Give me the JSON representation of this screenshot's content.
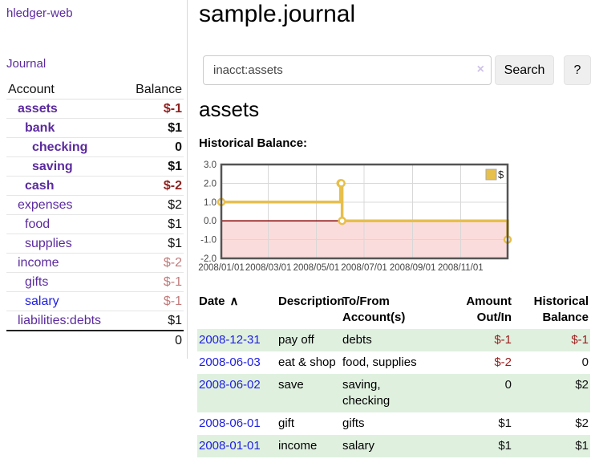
{
  "app": {
    "brand": "hledger-web",
    "nav_journal": "Journal"
  },
  "sidebar": {
    "header": {
      "account": "Account",
      "balance": "Balance"
    },
    "accounts": [
      {
        "label": "assets",
        "indent": 1,
        "bold": true,
        "link": "purple",
        "balance": "$-1",
        "balance_class": "neg"
      },
      {
        "label": "bank",
        "indent": 2,
        "bold": true,
        "link": "purple",
        "balance": "$1",
        "balance_class": "pos"
      },
      {
        "label": "checking",
        "indent": 3,
        "bold": true,
        "link": "purple",
        "balance": "0",
        "balance_class": "pos"
      },
      {
        "label": "saving",
        "indent": 3,
        "bold": true,
        "link": "purple",
        "balance": "$1",
        "balance_class": "pos"
      },
      {
        "label": "cash",
        "indent": 2,
        "bold": true,
        "link": "purple",
        "balance": "$-2",
        "balance_class": "neg"
      },
      {
        "label": "expenses",
        "indent": 1,
        "bold": false,
        "link": "purple",
        "balance": "$2",
        "balance_class": "pos"
      },
      {
        "label": "food",
        "indent": 2,
        "bold": false,
        "link": "purple",
        "balance": "$1",
        "balance_class": "pos"
      },
      {
        "label": "supplies",
        "indent": 2,
        "bold": false,
        "link": "purple",
        "balance": "$1",
        "balance_class": "pos"
      },
      {
        "label": "income",
        "indent": 1,
        "bold": false,
        "link": "purple",
        "balance": "$-2",
        "balance_class": "negmuted"
      },
      {
        "label": "gifts",
        "indent": 2,
        "bold": false,
        "link": "purple",
        "balance": "$-1",
        "balance_class": "negmuted"
      },
      {
        "label": "salary",
        "indent": 2,
        "bold": false,
        "link": "blue",
        "balance": "$-1",
        "balance_class": "negmuted"
      },
      {
        "label": "liabilities:debts",
        "indent": 1,
        "bold": false,
        "link": "purple",
        "balance": "$1",
        "balance_class": "pos"
      }
    ],
    "total": "0"
  },
  "main": {
    "title": "sample.journal",
    "search": {
      "value": "inacct:assets",
      "clear_icon": "×",
      "button": "Search",
      "help_button": "?"
    },
    "account_heading": "assets",
    "chart_label": "Historical Balance:",
    "table": {
      "headers": [
        "Date",
        "Description",
        "To/From\nAccount(s)",
        "Amount\nOut/In",
        "Historical\nBalance"
      ],
      "sort_icon": "∧",
      "rows": [
        {
          "date": "2008-12-31",
          "description": "pay off",
          "accounts": "debts",
          "amount": "$-1",
          "amount_neg": true,
          "balance": "$-1",
          "balance_neg": true
        },
        {
          "date": "2008-06-03",
          "description": "eat & shop",
          "accounts": "food, supplies",
          "amount": "$-2",
          "amount_neg": true,
          "balance": "0",
          "balance_neg": false
        },
        {
          "date": "2008-06-02",
          "description": "save",
          "accounts": "saving, checking",
          "amount": "0",
          "amount_neg": false,
          "balance": "$2",
          "balance_neg": false
        },
        {
          "date": "2008-06-01",
          "description": "gift",
          "accounts": "gifts",
          "amount": "$1",
          "amount_neg": false,
          "balance": "$2",
          "balance_neg": false
        },
        {
          "date": "2008-01-01",
          "description": "income",
          "accounts": "salary",
          "amount": "$1",
          "amount_neg": false,
          "balance": "$1",
          "balance_neg": false
        }
      ]
    }
  },
  "chart_data": {
    "type": "line",
    "title": "Historical Balance:",
    "step": true,
    "x_min": "2008-01-01",
    "x_max": "2008-12-31",
    "ylim": [
      -2,
      3
    ],
    "yticks": [
      3,
      2,
      1,
      0,
      -1,
      -2
    ],
    "xticks": [
      "2008/01/01",
      "2008/03/01",
      "2008/05/01",
      "2008/07/01",
      "2008/09/01",
      "2008/11/01"
    ],
    "legend_position": "top-right",
    "series": [
      {
        "name": "$",
        "color": "#e7bf4b",
        "points": [
          [
            "2008-01-01",
            1
          ],
          [
            "2008-06-01",
            2
          ],
          [
            "2008-06-02",
            2
          ],
          [
            "2008-06-03",
            0
          ],
          [
            "2008-12-31",
            -1
          ]
        ]
      }
    ],
    "colors": {
      "negative_fill": "#fbdcdc",
      "zero_line": "#8b0000",
      "grid": "#d8d8d8",
      "border": "#545454",
      "marker_fill": "#ffffff"
    }
  },
  "colors": {
    "link_purple": "#5b2a9e",
    "link_blue": "#1e1ee0",
    "negative_strong": "#8f1f1f",
    "negative_muted": "#c07a7a",
    "negative_table": "#9b1c1c",
    "row_stripe_green": "#dff0df",
    "button_bg": "#efefef",
    "input_border": "#cccccc"
  }
}
